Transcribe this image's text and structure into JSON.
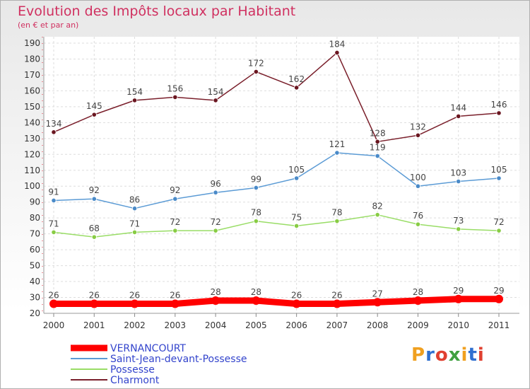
{
  "title": "Evolution des Impôts locaux par Habitant",
  "subtitle": "(en € et par an)",
  "logo": {
    "text": "Proxiti",
    "colors": [
      "#f0a020",
      "#3070d0",
      "#e04030",
      "#40a040",
      "#f0a020",
      "#3070d0",
      "#e04030"
    ]
  },
  "chart_data": {
    "type": "line",
    "title": "Evolution des Impôts locaux par Habitant",
    "subtitle": "(en € et par an)",
    "xlabel": "",
    "ylabel": "",
    "ylim": [
      20,
      190
    ],
    "yticks": [
      20,
      30,
      40,
      50,
      60,
      70,
      80,
      90,
      100,
      110,
      120,
      130,
      140,
      150,
      160,
      170,
      180,
      190
    ],
    "categories": [
      "2000",
      "2001",
      "2002",
      "2003",
      "2004",
      "2005",
      "2006",
      "2007",
      "2008",
      "2009",
      "2010",
      "2011"
    ],
    "grid": true,
    "legend_position": "bottom-left",
    "series": [
      {
        "name": "VERNANCOURT",
        "color": "#ff0000",
        "width": 9,
        "values": [
          26,
          26,
          26,
          26,
          28,
          28,
          26,
          26,
          27,
          28,
          29,
          29
        ]
      },
      {
        "name": "Saint-Jean-devant-Possesse",
        "color": "#5b9bd5",
        "width": 1.5,
        "values": [
          91,
          92,
          86,
          92,
          96,
          99,
          105,
          121,
          119,
          100,
          103,
          105
        ]
      },
      {
        "name": "Possesse",
        "color": "#99dd66",
        "width": 1.5,
        "values": [
          71,
          68,
          71,
          72,
          72,
          78,
          75,
          78,
          82,
          76,
          73,
          72
        ]
      },
      {
        "name": "Charmont",
        "color": "#7a1f2b",
        "width": 1.5,
        "values": [
          134,
          145,
          154,
          156,
          154,
          172,
          162,
          184,
          128,
          132,
          144,
          146
        ]
      }
    ]
  }
}
